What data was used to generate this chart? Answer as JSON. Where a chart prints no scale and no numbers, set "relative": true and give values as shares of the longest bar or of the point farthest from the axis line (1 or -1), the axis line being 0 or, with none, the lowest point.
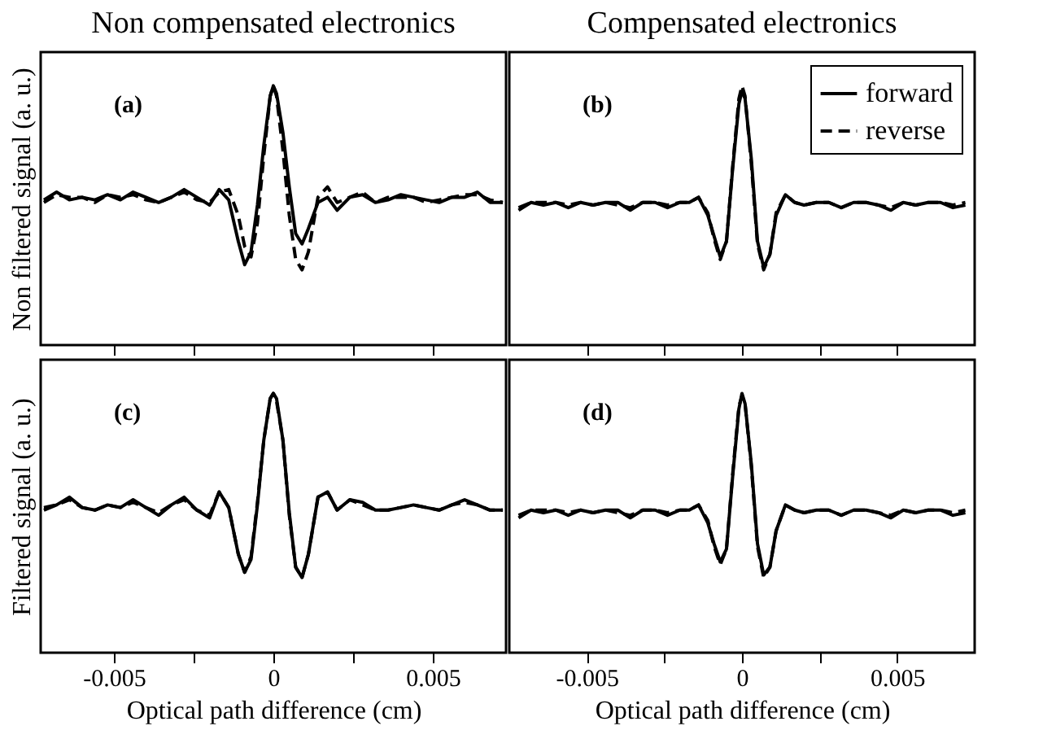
{
  "chart_data": [
    {
      "type": "line",
      "title": "Non compensated electronics",
      "ylabel": "Non filtered signal (a. u.)",
      "annotations": [
        "(a)"
      ],
      "relative": true,
      "tick_labels": false,
      "xlim": [
        -0.0073,
        0.0073
      ],
      "xticks": [
        {
          "value": -0.005,
          "label": null
        },
        {
          "value": -0.0025,
          "label": null
        },
        {
          "value": 0,
          "label": null
        },
        {
          "value": 0.0025,
          "label": null
        },
        {
          "value": 0.005,
          "label": null
        }
      ],
      "x": [
        -0.0072,
        -0.0068,
        -0.0064,
        -0.006,
        -0.0056,
        -0.0052,
        -0.0048,
        -0.0044,
        -0.004,
        -0.0036,
        -0.0032,
        -0.0028,
        -0.0024,
        -0.002,
        -0.0017,
        -0.0014,
        -0.0011,
        -0.0009,
        -0.0007,
        -0.0005,
        -0.0003,
        -0.0001,
        0,
        0.0001,
        0.0003,
        0.0005,
        0.0007,
        0.0009,
        0.0011,
        0.0014,
        0.0017,
        0.002,
        0.0024,
        0.0028,
        0.0032,
        0.0036,
        0.004,
        0.0044,
        0.0048,
        0.0052,
        0.0056,
        0.006,
        0.0064,
        0.0068,
        0.0072
      ],
      "series": [
        {
          "color": "#000000",
          "line_style": "solid",
          "values": [
            0.56,
            0.59,
            0.56,
            0.57,
            0.56,
            0.58,
            0.56,
            0.59,
            0.57,
            0.55,
            0.57,
            0.6,
            0.57,
            0.54,
            0.6,
            0.56,
            0.4,
            0.31,
            0.36,
            0.54,
            0.77,
            0.96,
            1.0,
            0.97,
            0.82,
            0.61,
            0.43,
            0.39,
            0.45,
            0.55,
            0.57,
            0.52,
            0.57,
            0.58,
            0.55,
            0.56,
            0.58,
            0.57,
            0.56,
            0.55,
            0.57,
            0.57,
            0.59,
            0.55,
            0.55
          ]
        },
        {
          "color": "#000000",
          "line_style": "dashed",
          "values": [
            0.55,
            0.58,
            0.57,
            0.57,
            0.55,
            0.58,
            0.57,
            0.58,
            0.56,
            0.55,
            0.57,
            0.59,
            0.56,
            0.55,
            0.59,
            0.6,
            0.5,
            0.38,
            0.34,
            0.47,
            0.73,
            0.96,
            1.0,
            0.96,
            0.75,
            0.5,
            0.33,
            0.29,
            0.36,
            0.57,
            0.61,
            0.55,
            0.57,
            0.59,
            0.55,
            0.57,
            0.57,
            0.57,
            0.55,
            0.56,
            0.57,
            0.58,
            0.58,
            0.56,
            0.55
          ]
        }
      ]
    },
    {
      "type": "line",
      "title": "Compensated electronics",
      "annotations": [
        "(b)"
      ],
      "relative": true,
      "tick_labels": false,
      "legend": "top right",
      "xlim": [
        -0.0075,
        0.0075
      ],
      "xticks": [
        {
          "value": -0.005,
          "label": null
        },
        {
          "value": -0.0025,
          "label": null
        },
        {
          "value": 0,
          "label": null
        },
        {
          "value": 0.0025,
          "label": null
        },
        {
          "value": 0.005,
          "label": null
        }
      ],
      "x": [
        -0.0072,
        -0.0068,
        -0.0064,
        -0.006,
        -0.0056,
        -0.0052,
        -0.0048,
        -0.0044,
        -0.004,
        -0.0036,
        -0.0032,
        -0.0028,
        -0.0024,
        -0.002,
        -0.0017,
        -0.0014,
        -0.0011,
        -0.0009,
        -0.0007,
        -0.0005,
        -0.0003,
        -0.0001,
        0,
        0.0001,
        0.0003,
        0.0005,
        0.0007,
        0.0009,
        0.0011,
        0.0014,
        0.0017,
        0.002,
        0.0024,
        0.0028,
        0.0032,
        0.0036,
        0.004,
        0.0044,
        0.0048,
        0.0052,
        0.0056,
        0.006,
        0.0064,
        0.0068,
        0.0072
      ],
      "series": [
        {
          "name": "forward",
          "color": "#000000",
          "line_style": "solid",
          "values": [
            0.52,
            0.55,
            0.54,
            0.55,
            0.53,
            0.55,
            0.54,
            0.55,
            0.55,
            0.52,
            0.55,
            0.55,
            0.53,
            0.55,
            0.55,
            0.57,
            0.5,
            0.42,
            0.34,
            0.4,
            0.68,
            0.93,
            0.98,
            0.95,
            0.72,
            0.4,
            0.3,
            0.35,
            0.5,
            0.58,
            0.55,
            0.54,
            0.55,
            0.55,
            0.53,
            0.55,
            0.55,
            0.54,
            0.52,
            0.55,
            0.54,
            0.55,
            0.55,
            0.53,
            0.54
          ]
        },
        {
          "name": "reverse",
          "color": "#000000",
          "line_style": "dashed",
          "values": [
            0.53,
            0.55,
            0.55,
            0.55,
            0.54,
            0.55,
            0.54,
            0.55,
            0.54,
            0.53,
            0.55,
            0.55,
            0.54,
            0.55,
            0.55,
            0.57,
            0.51,
            0.41,
            0.33,
            0.4,
            0.69,
            0.95,
            1.0,
            0.96,
            0.7,
            0.39,
            0.29,
            0.35,
            0.51,
            0.58,
            0.55,
            0.54,
            0.55,
            0.55,
            0.53,
            0.55,
            0.55,
            0.54,
            0.53,
            0.55,
            0.54,
            0.55,
            0.55,
            0.54,
            0.55
          ]
        }
      ]
    },
    {
      "type": "line",
      "ylabel": "Filtered signal (a. u.)",
      "xlabel": "Optical path difference (cm)",
      "annotations": [
        "(c)"
      ],
      "relative": true,
      "tick_labels": "x",
      "xlim": [
        -0.0073,
        0.0073
      ],
      "xticks": [
        {
          "value": -0.005,
          "label": "-0.005"
        },
        {
          "value": -0.0025,
          "label": null
        },
        {
          "value": 0,
          "label": "0"
        },
        {
          "value": 0.0025,
          "label": null
        },
        {
          "value": 0.005,
          "label": "0.005"
        }
      ],
      "x": [
        -0.0072,
        -0.0068,
        -0.0064,
        -0.006,
        -0.0056,
        -0.0052,
        -0.0048,
        -0.0044,
        -0.004,
        -0.0036,
        -0.0032,
        -0.0028,
        -0.0024,
        -0.002,
        -0.0017,
        -0.0014,
        -0.0011,
        -0.0009,
        -0.0007,
        -0.0005,
        -0.0003,
        -0.0001,
        0,
        0.0001,
        0.0003,
        0.0005,
        0.0007,
        0.0009,
        0.0011,
        0.0014,
        0.0017,
        0.002,
        0.0024,
        0.0028,
        0.0032,
        0.0036,
        0.004,
        0.0044,
        0.0048,
        0.0052,
        0.0056,
        0.006,
        0.0064,
        0.0068,
        0.0072
      ],
      "series": [
        {
          "color": "#000000",
          "line_style": "solid",
          "values": [
            0.55,
            0.57,
            0.6,
            0.56,
            0.55,
            0.57,
            0.56,
            0.59,
            0.56,
            0.53,
            0.57,
            0.6,
            0.55,
            0.52,
            0.62,
            0.56,
            0.38,
            0.31,
            0.36,
            0.57,
            0.82,
            0.98,
            1.0,
            0.98,
            0.82,
            0.54,
            0.33,
            0.29,
            0.38,
            0.6,
            0.62,
            0.55,
            0.59,
            0.58,
            0.55,
            0.55,
            0.56,
            0.57,
            0.56,
            0.55,
            0.57,
            0.59,
            0.57,
            0.55,
            0.55
          ]
        },
        {
          "color": "#000000",
          "line_style": "dashed",
          "values": [
            0.56,
            0.57,
            0.59,
            0.56,
            0.55,
            0.57,
            0.56,
            0.58,
            0.56,
            0.54,
            0.57,
            0.59,
            0.55,
            0.53,
            0.62,
            0.56,
            0.38,
            0.31,
            0.37,
            0.58,
            0.82,
            0.98,
            1.0,
            0.97,
            0.82,
            0.53,
            0.33,
            0.29,
            0.38,
            0.6,
            0.62,
            0.55,
            0.59,
            0.57,
            0.55,
            0.55,
            0.56,
            0.57,
            0.56,
            0.55,
            0.57,
            0.58,
            0.57,
            0.55,
            0.55
          ]
        }
      ]
    },
    {
      "type": "line",
      "xlabel": "Optical path difference (cm)",
      "annotations": [
        "(d)"
      ],
      "relative": true,
      "tick_labels": "x",
      "xlim": [
        -0.0075,
        0.0075
      ],
      "xticks": [
        {
          "value": -0.005,
          "label": "-0.005"
        },
        {
          "value": -0.0025,
          "label": null
        },
        {
          "value": 0,
          "label": "0"
        },
        {
          "value": 0.0025,
          "label": null
        },
        {
          "value": 0.005,
          "label": "0.005"
        }
      ],
      "x": [
        -0.0072,
        -0.0068,
        -0.0064,
        -0.006,
        -0.0056,
        -0.0052,
        -0.0048,
        -0.0044,
        -0.004,
        -0.0036,
        -0.0032,
        -0.0028,
        -0.0024,
        -0.002,
        -0.0017,
        -0.0014,
        -0.0011,
        -0.0009,
        -0.0007,
        -0.0005,
        -0.0003,
        -0.0001,
        0,
        0.0001,
        0.0003,
        0.0005,
        0.0007,
        0.0009,
        0.0011,
        0.0014,
        0.0017,
        0.002,
        0.0024,
        0.0028,
        0.0032,
        0.0036,
        0.004,
        0.0044,
        0.0048,
        0.0052,
        0.0056,
        0.006,
        0.0064,
        0.0068,
        0.0072
      ],
      "series": [
        {
          "color": "#000000",
          "line_style": "solid",
          "values": [
            0.52,
            0.55,
            0.54,
            0.55,
            0.53,
            0.55,
            0.54,
            0.55,
            0.55,
            0.52,
            0.55,
            0.55,
            0.53,
            0.55,
            0.55,
            0.57,
            0.5,
            0.42,
            0.35,
            0.4,
            0.68,
            0.94,
            1.0,
            0.96,
            0.73,
            0.42,
            0.3,
            0.33,
            0.47,
            0.57,
            0.55,
            0.54,
            0.55,
            0.55,
            0.53,
            0.55,
            0.55,
            0.54,
            0.52,
            0.55,
            0.54,
            0.55,
            0.55,
            0.53,
            0.54
          ]
        },
        {
          "color": "#000000",
          "line_style": "dashed",
          "values": [
            0.53,
            0.55,
            0.55,
            0.55,
            0.54,
            0.55,
            0.54,
            0.55,
            0.54,
            0.53,
            0.55,
            0.55,
            0.54,
            0.55,
            0.55,
            0.57,
            0.51,
            0.41,
            0.34,
            0.4,
            0.69,
            0.95,
            0.99,
            0.96,
            0.72,
            0.41,
            0.29,
            0.33,
            0.47,
            0.57,
            0.55,
            0.54,
            0.55,
            0.55,
            0.53,
            0.55,
            0.55,
            0.54,
            0.53,
            0.55,
            0.54,
            0.55,
            0.55,
            0.54,
            0.55
          ]
        }
      ]
    }
  ]
}
